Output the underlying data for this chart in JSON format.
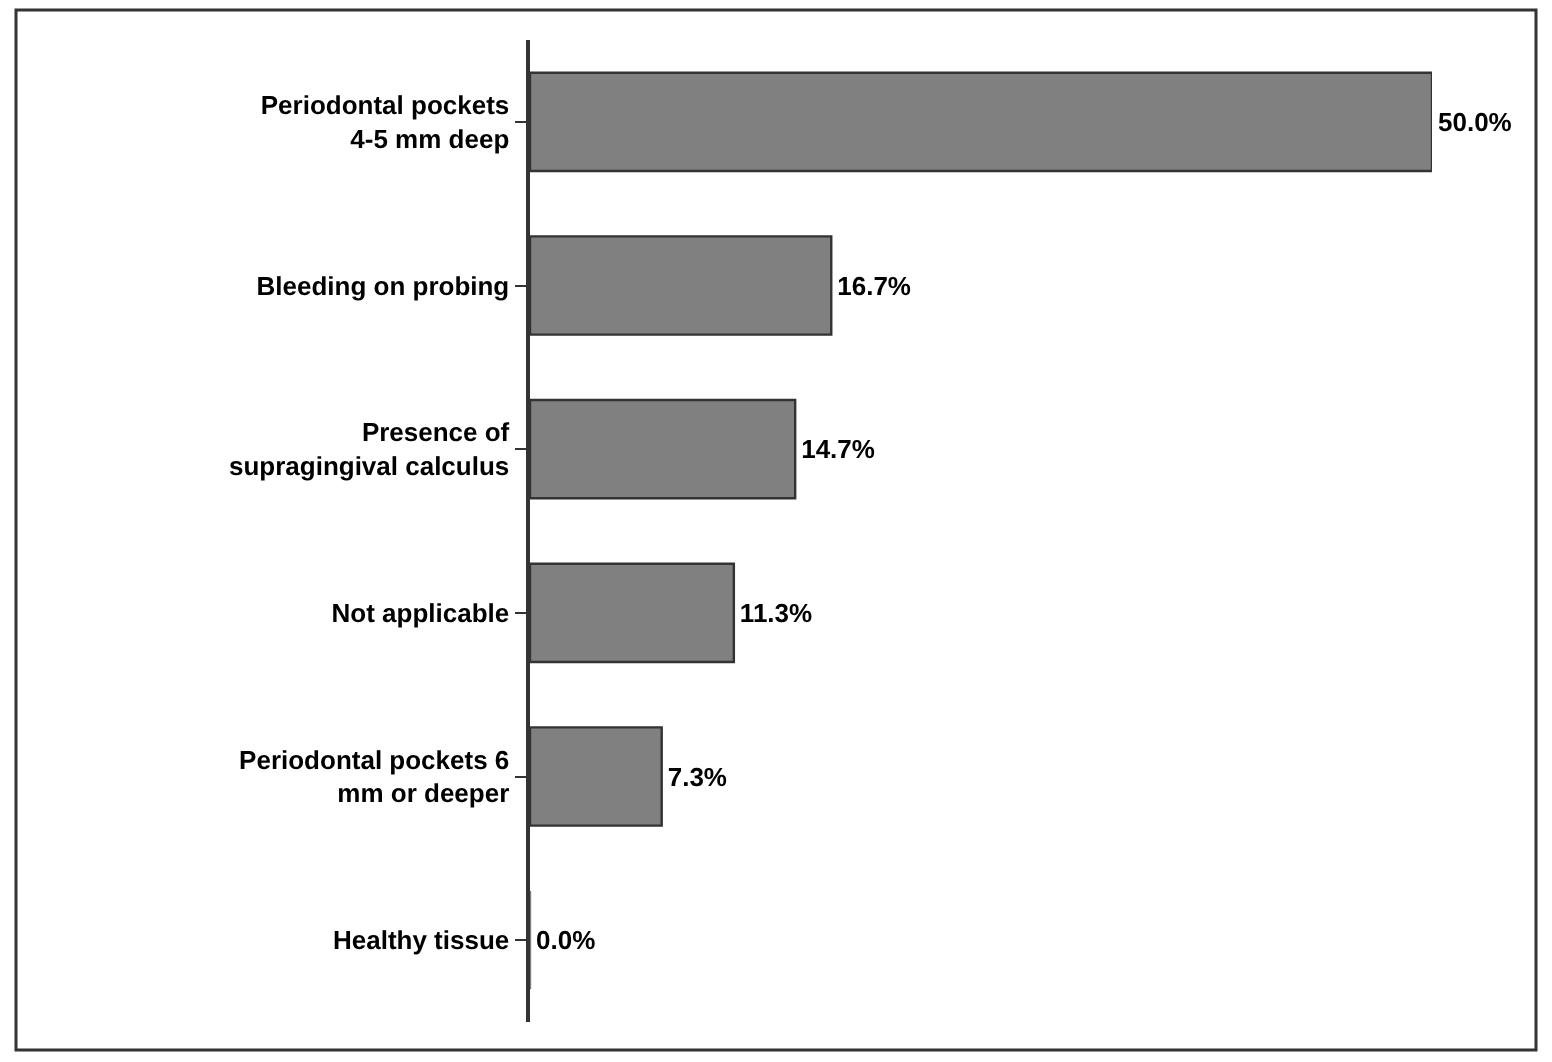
{
  "chart_data": {
    "type": "bar",
    "orientation": "horizontal",
    "tick_labels": "y",
    "categories": [
      "Periodontal pockets 4-5 mm deep",
      "Bleeding on probing",
      "Presence of supragingival calculus",
      "Not applicable",
      "Periodontal pockets 6 mm or deeper",
      "Healthy tissue"
    ],
    "values": [
      50.0,
      16.7,
      14.7,
      11.3,
      7.3,
      0.0
    ],
    "value_labels": [
      "50.0%",
      "16.7%",
      "14.7%",
      "11.3%",
      "7.3%",
      "0.0%"
    ],
    "color": "#808080",
    "legend": false
  }
}
